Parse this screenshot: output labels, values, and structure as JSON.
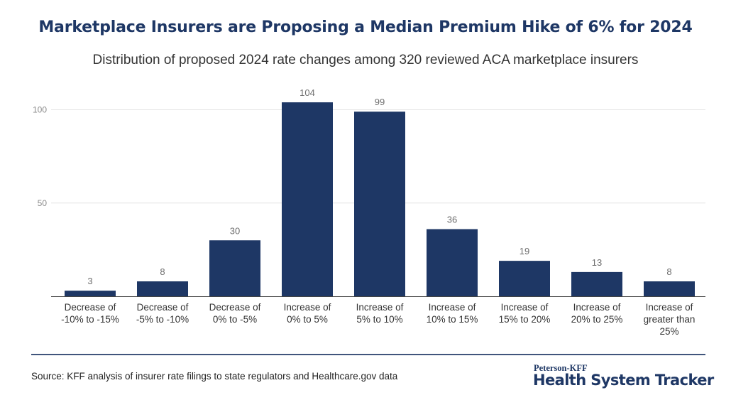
{
  "header": {
    "title": "Marketplace Insurers are Proposing a Median Premium Hike of 6% for 2024",
    "subtitle": "Distribution of proposed 2024 rate changes among 320 reviewed ACA marketplace insurers"
  },
  "chart_data": {
    "type": "bar",
    "categories": [
      [
        "Decrease of",
        "-10% to -15%"
      ],
      [
        "Decrease of",
        "-5% to -10%"
      ],
      [
        "Decrease of",
        "0% to -5%"
      ],
      [
        "Increase of",
        "0% to 5%"
      ],
      [
        "Increase of",
        "5% to 10%"
      ],
      [
        "Increase of",
        "10% to 15%"
      ],
      [
        "Increase of",
        "15% to 20%"
      ],
      [
        "Increase of",
        "20% to 25%"
      ],
      [
        "Increase of",
        "greater than",
        "25%"
      ]
    ],
    "values": [
      3,
      8,
      30,
      104,
      99,
      36,
      19,
      13,
      8
    ],
    "yticks": [
      50,
      100
    ],
    "ylim": [
      0,
      110
    ],
    "grid": true,
    "legend": "none",
    "colors": {
      "bar": "#1e3765",
      "grid": "#e3e3e3",
      "axis": "#444444",
      "tick_label": "#8a8a8a",
      "value_label": "#6e6e6e",
      "category_label": "#333333"
    }
  },
  "footer": {
    "source": "Source: KFF analysis of insurer rate filings to state regulators and Healthcare.gov data",
    "brand_small": "Peterson-KFF",
    "brand_large": "Health System Tracker"
  }
}
